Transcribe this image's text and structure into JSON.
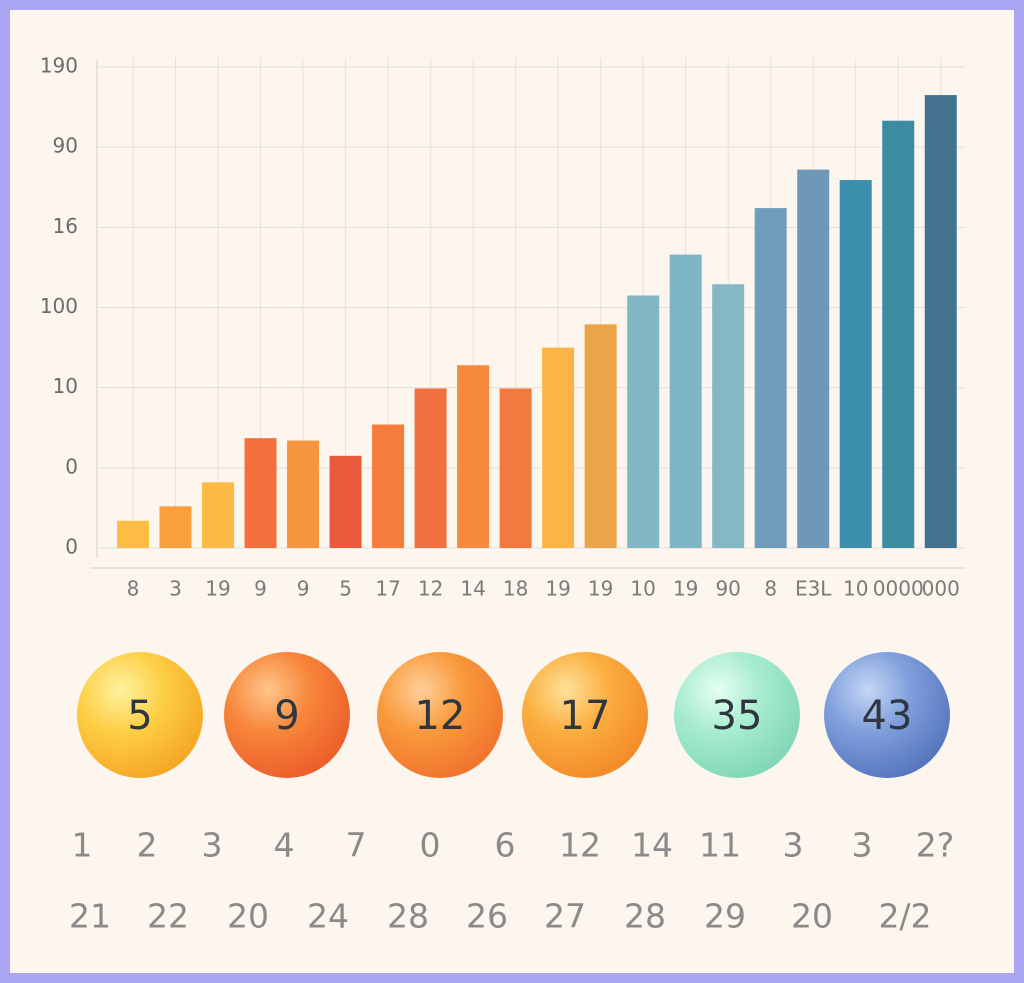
{
  "chart_data": {
    "type": "bar",
    "categories": [
      "8",
      "3",
      "19",
      "9",
      "9",
      "5",
      "17",
      "12",
      "14",
      "18",
      "19",
      "19",
      "10",
      "19",
      "90",
      "8",
      "E3L",
      "10",
      "0000",
      "000"
    ],
    "values": [
      0.34,
      0.52,
      0.82,
      1.37,
      1.34,
      1.15,
      1.54,
      1.99,
      2.28,
      1.99,
      2.5,
      2.79,
      3.15,
      3.66,
      3.29,
      4.24,
      4.72,
      4.59,
      5.33,
      5.65
    ],
    "colors": [
      "#fdbd45",
      "#f9a03c",
      "#fdbb45",
      "#f3703c",
      "#f69440",
      "#eb5a3c",
      "#f67c3c",
      "#f0703f",
      "#f78a3c",
      "#f27a40",
      "#fab545",
      "#eca44a",
      "#82b8c6",
      "#7fb6c6",
      "#84b8c4",
      "#6f9dbc",
      "#6f98b8",
      "#3a8fab",
      "#3b8ba3",
      "#44738f"
    ],
    "ylim": [
      0,
      6
    ],
    "yticks": [
      0,
      {
        "value": 1,
        "label": "0"
      },
      {
        "value": 2,
        "label": "10"
      },
      {
        "value": 3,
        "label": "100"
      },
      {
        "value": 4,
        "label": "16"
      },
      {
        "value": 5,
        "label": "90"
      },
      {
        "value": 6,
        "label": "190"
      }
    ],
    "grid": true
  },
  "badges": [
    "5",
    "9",
    "12",
    "17",
    "35",
    "43"
  ],
  "number_rows": [
    [
      "1",
      "2",
      "3",
      "4",
      "7",
      "0",
      "6",
      "12",
      "14",
      "11",
      "3",
      "3",
      "2?"
    ],
    [
      "21",
      "22",
      "20",
      "24",
      "28",
      "26",
      "27",
      "28",
      "29",
      "20",
      "2/2"
    ]
  ]
}
